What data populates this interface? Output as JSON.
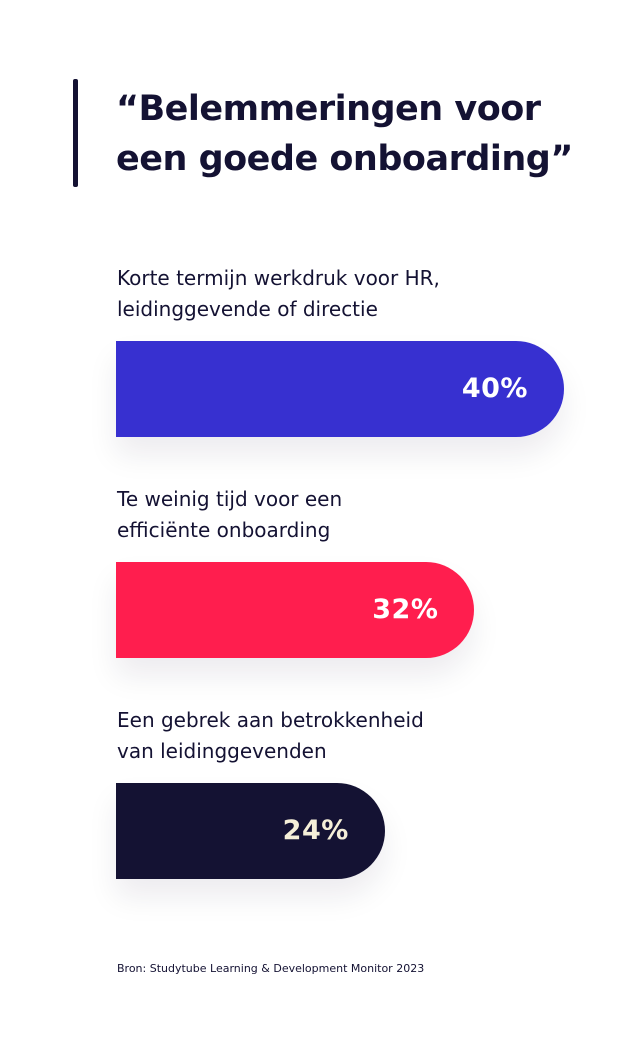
{
  "header": {
    "title_line1": "“Belemmeringen voor",
    "title_line2": "een goede onboarding”"
  },
  "chart_data": {
    "type": "bar",
    "orientation": "horizontal",
    "title": "“Belemmeringen voor een goede onboarding”",
    "categories": [
      "Korte termijn werkdruk voor HR, leidinggevende of directie",
      "Te weinig tijd voor een efficiënte onboarding",
      "Een gebrek aan betrokkenheid van leidinggevenden"
    ],
    "values": [
      40,
      32,
      24
    ],
    "value_labels": [
      "40%",
      "32%",
      "24%"
    ],
    "unit": "%",
    "grid": false,
    "colors": [
      "#3730d0",
      "#ff1e4e",
      "#141233"
    ],
    "value_label_colors": [
      "#ffffff",
      "#ffffff",
      "#f5efd8"
    ]
  },
  "labels": [
    {
      "line1": "Korte termijn werkdruk voor HR,",
      "line2": "leidinggevende of directie"
    },
    {
      "line1": "Te weinig tijd voor een",
      "line2": "efficiënte onboarding"
    },
    {
      "line1": "Een gebrek aan betrokkenheid",
      "line2": "van leidinggevenden"
    }
  ],
  "footer": {
    "source": "Bron: Studytube Learning & Development Monitor 2023"
  }
}
